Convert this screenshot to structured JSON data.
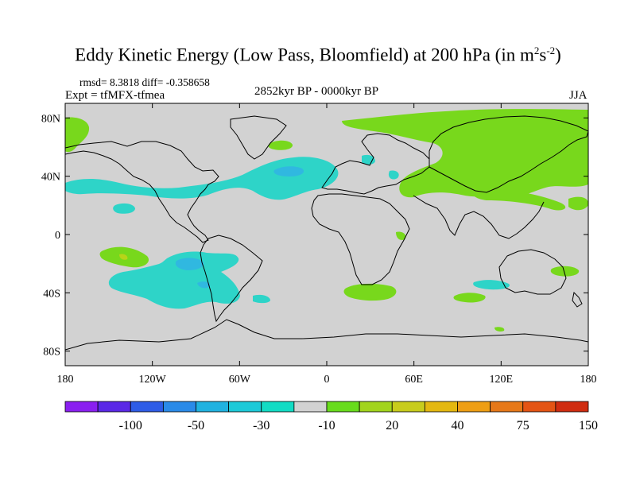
{
  "header": {
    "title": "Eddy Kinetic Energy (Low Pass, Bloomfield) at 200 hPa (in m",
    "unit_sup1": "2",
    "unit_mid": "s",
    "unit_sup2": "-2",
    "unit_close": ")",
    "stats": "rmsd= 8.3818 diff= -0.358658",
    "experiment": "Expt = tfMFX-tfmea",
    "period": "2852kyr BP - 0000kyr BP",
    "season": "JJA"
  },
  "chart_data": {
    "type": "heatmap",
    "projection": "cylindrical equidistant",
    "background_value_range": [
      -10,
      20
    ],
    "x_axis": {
      "range": [
        -180,
        180
      ],
      "ticks": [
        -180,
        -120,
        -60,
        0,
        60,
        120,
        180
      ],
      "tick_labels": [
        "180",
        "120W",
        "60W",
        "0",
        "60E",
        "120E",
        "180"
      ]
    },
    "y_axis": {
      "range": [
        -90,
        90
      ],
      "ticks": [
        80,
        40,
        0,
        -40,
        -80
      ],
      "tick_labels": [
        "80N",
        "40N",
        "0",
        "40S",
        "80S"
      ]
    },
    "colorbar": {
      "colors": [
        "#8a1ff0",
        "#5a28e6",
        "#2e5ce6",
        "#2a8ae8",
        "#20b2e0",
        "#1ccad8",
        "#12dcc4",
        "#d2d2d2",
        "#68dc1c",
        "#a2d41c",
        "#c8cc1c",
        "#e4b810",
        "#ee9e14",
        "#e67818",
        "#e45414",
        "#d02c10"
      ],
      "labels": [
        "-100",
        "-50",
        "-30",
        "-10",
        "20",
        "40",
        "75",
        "150"
      ],
      "label_after_index": [
        1,
        3,
        5,
        7,
        9,
        11,
        13,
        15
      ]
    },
    "regions": [
      {
        "name": "green-siberia",
        "color": "#7ad81c",
        "lon": [
          15,
          180
        ],
        "lat": [
          30,
          88
        ]
      },
      {
        "name": "green-pacific",
        "color": "#7ad81c",
        "lon": [
          125,
          180
        ],
        "lat": [
          30,
          60
        ]
      },
      {
        "name": "green-arctic-canada",
        "color": "#7ad81c",
        "lon": [
          -178,
          -150
        ],
        "lat": [
          62,
          85
        ]
      },
      {
        "name": "green-greenland",
        "color": "#7ad81c",
        "lon": [
          -44,
          -24
        ],
        "lat": [
          62,
          70
        ]
      },
      {
        "name": "green-south-pacific",
        "color": "#7ad81c",
        "lon": [
          -128,
          -108
        ],
        "lat": [
          -14,
          -24
        ]
      },
      {
        "name": "green-south-africa",
        "color": "#7ad81c",
        "lon": [
          16,
          40
        ],
        "lat": [
          -28,
          -44
        ]
      },
      {
        "name": "green-south-india-ocean",
        "color": "#7ad81c",
        "lon": [
          88,
          108
        ],
        "lat": [
          -36,
          -42
        ]
      },
      {
        "name": "green-australia",
        "color": "#7ad81c",
        "lon": [
          158,
          172
        ],
        "lat": [
          -17,
          -25
        ]
      },
      {
        "name": "cyan-north-atlantic",
        "color": "#2ed4c8",
        "lon": [
          -170,
          -5
        ],
        "lat": [
          28,
          58
        ]
      },
      {
        "name": "cyan-south-america",
        "color": "#2ed4c8",
        "lon": [
          -125,
          -50
        ],
        "lat": [
          -10,
          -50
        ]
      },
      {
        "name": "cyan-south-indian",
        "color": "#2ed4c8",
        "lon": [
          100,
          140
        ],
        "lat": [
          -28,
          -36
        ]
      },
      {
        "name": "blue-atlantic-core",
        "color": "#30b8e0",
        "lon": [
          -40,
          -20
        ],
        "lat": [
          38,
          48
        ]
      }
    ]
  }
}
